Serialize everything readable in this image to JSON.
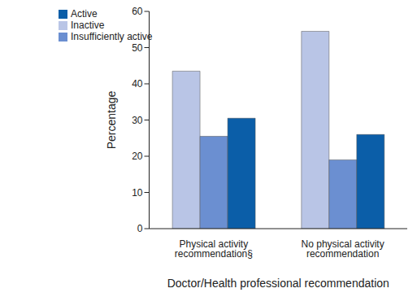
{
  "chart_data": {
    "type": "bar",
    "categories": [
      "Physical activity recommendation§",
      "No physical activity recommendation"
    ],
    "series": [
      {
        "name": "Inactive",
        "color": "#b9c5e6",
        "values": [
          43.5,
          54.5
        ]
      },
      {
        "name": "Insufficiently active",
        "color": "#6b8fd1",
        "values": [
          25.5,
          19
        ]
      },
      {
        "name": "Active",
        "color": "#0b5ea8",
        "values": [
          30.5,
          26
        ]
      }
    ],
    "x_label": "Doctor/Health professional recommendation",
    "y_label": "Percentage",
    "ylim": [
      0,
      60
    ],
    "yticks": [
      0,
      10,
      20,
      30,
      40,
      50,
      60
    ],
    "legend": "upper left",
    "grid": false
  }
}
